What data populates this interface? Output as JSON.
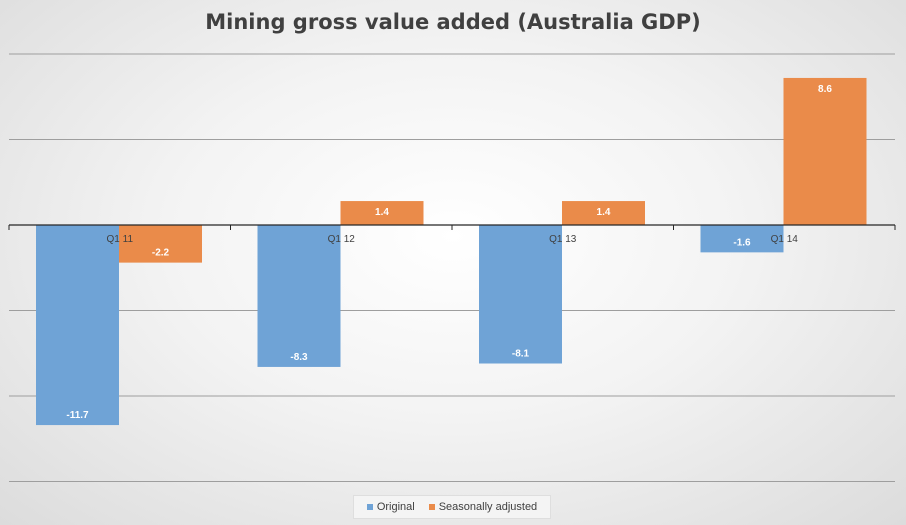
{
  "chart_data": {
    "type": "bar",
    "title": "Mining gross value added (Australia GDP)",
    "categories": [
      "Q1 11",
      "Q1 12",
      "Q1 13",
      "Q1 14"
    ],
    "series": [
      {
        "name": "Original",
        "values": [
          -11.7,
          -8.3,
          -8.1,
          -1.6
        ],
        "color": "#6fa3d6"
      },
      {
        "name": "Seasonally adjusted",
        "values": [
          -2.2,
          1.4,
          1.4,
          8.6
        ],
        "color": "#ea8b4a"
      }
    ],
    "xlabel": "",
    "ylabel": "",
    "ylim": [
      -15,
      10
    ],
    "y_gridlines": [
      -15,
      -10,
      -5,
      0,
      5,
      10
    ],
    "grid": true,
    "legend": "bottom"
  }
}
